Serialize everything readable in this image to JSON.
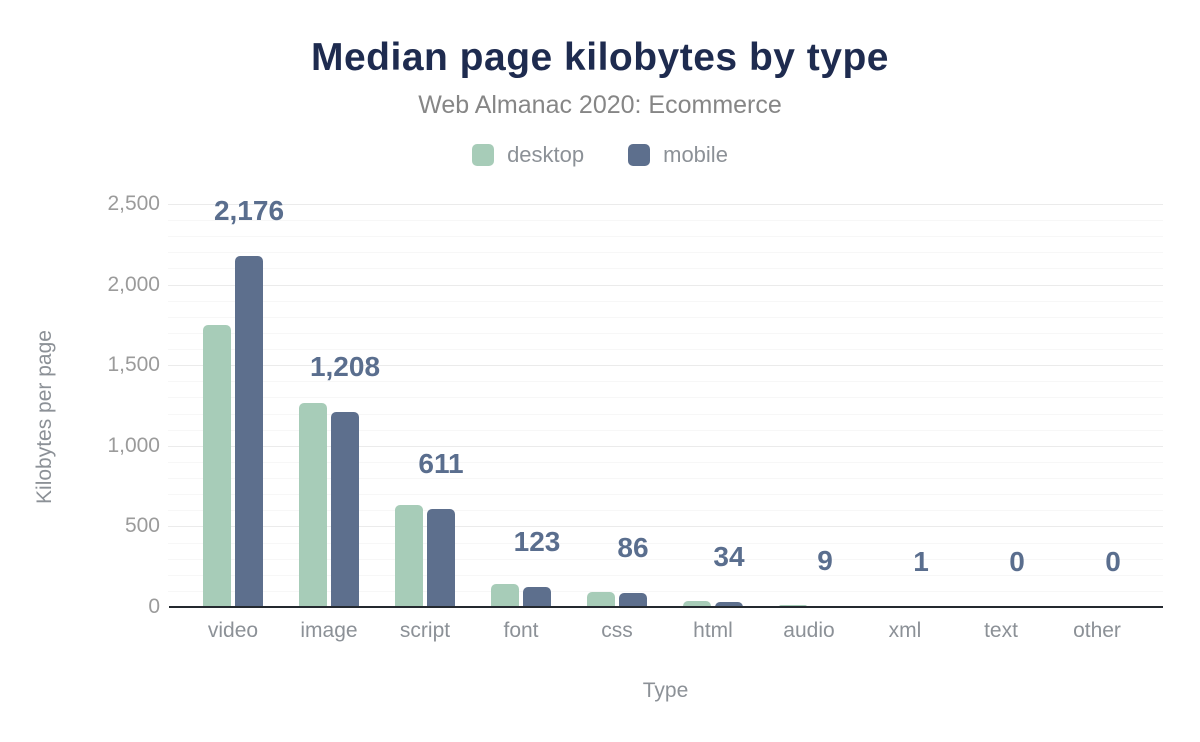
{
  "title": "Median page kilobytes by type",
  "subtitle": "Web Almanac 2020: Ecommerce",
  "legend": [
    {
      "label": "desktop",
      "color": "#a7ccb8"
    },
    {
      "label": "mobile",
      "color": "#5d6f8d"
    }
  ],
  "colors": {
    "title": "#1e2b4f",
    "subtitle": "#868686",
    "desktop_bar": "#a7ccb8",
    "mobile_bar": "#5d6f8d",
    "bar_label": "#5a6e8e",
    "axis_line": "#24292f",
    "gridline_major": "#ebebeb",
    "gridline_minor": "#f7f7f7",
    "tick_text": "#9b9b9b"
  },
  "chart_data": {
    "type": "bar",
    "title": "Median page kilobytes by type",
    "subtitle": "Web Almanac 2020: Ecommerce",
    "categories": [
      "video",
      "image",
      "script",
      "font",
      "css",
      "html",
      "audio",
      "xml",
      "text",
      "other"
    ],
    "series": [
      {
        "name": "desktop",
        "color": "#a7ccb8",
        "values": [
          1748,
          1264,
          630,
          143,
          92,
          36,
          14,
          1,
          0,
          0
        ]
      },
      {
        "name": "mobile",
        "color": "#5d6f8d",
        "values": [
          2176,
          1208,
          611,
          123,
          86,
          34,
          9,
          1,
          0,
          0
        ]
      }
    ],
    "bar_labels": [
      "2,176",
      "1,208",
      "611",
      "123",
      "86",
      "34",
      "9",
      "1",
      "0",
      "0"
    ],
    "bar_labels_series": "mobile",
    "xlabel": "Type",
    "ylabel": "Kilobytes per page",
    "ylim": [
      0,
      2500
    ],
    "yticks": [
      0,
      500,
      1000,
      1500,
      2000,
      2500
    ],
    "ytick_labels": [
      "0",
      "500",
      "1,000",
      "1,500",
      "2,000",
      "2,500"
    ],
    "grid": {
      "minor_every": 100,
      "major_every": 500,
      "orientation": "horizontal"
    },
    "legend_position": "top"
  }
}
